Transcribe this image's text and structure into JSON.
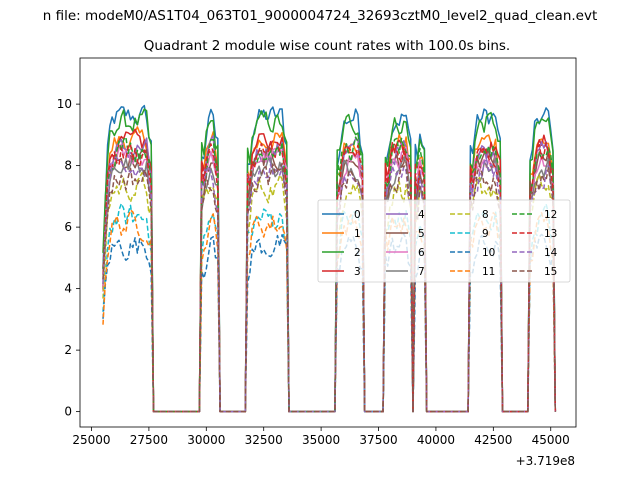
{
  "figure": {
    "suptitle": "n file: modeM0/AS1T04_063T01_9000004724_32693cztM0_level2_quad_clean.evt",
    "title": "Quadrant 2 module wise count rates with 100.0s bins."
  },
  "chart_data": {
    "type": "line",
    "title": "Quadrant 2 module wise count rates with 100.0s bins.",
    "xlabel": "",
    "ylabel": "",
    "x_offset_label": "+3.719e8",
    "xlim": [
      24500,
      46100
    ],
    "ylim": [
      -0.5,
      11.5
    ],
    "xticks": [
      25000,
      27500,
      30000,
      32500,
      35000,
      37500,
      40000,
      42500,
      45000
    ],
    "xtick_labels": [
      "25000",
      "27500",
      "30000",
      "32500",
      "35000",
      "37500",
      "40000",
      "42500",
      "45000"
    ],
    "yticks": [
      0,
      2,
      4,
      6,
      8,
      10
    ],
    "ytick_labels": [
      "0",
      "2",
      "4",
      "6",
      "8",
      "10"
    ],
    "grid": false,
    "legend_position": "center-right",
    "legend_columns": 4,
    "segments": [
      {
        "start": 25500,
        "end": 27600
      },
      {
        "start": 29800,
        "end": 30500
      },
      {
        "start": 31800,
        "end": 33500
      },
      {
        "start": 35700,
        "end": 36800
      },
      {
        "start": 37800,
        "end": 38900
      },
      {
        "start": 39100,
        "end": 39500
      },
      {
        "start": 41500,
        "end": 42800
      },
      {
        "start": 44100,
        "end": 45100
      }
    ],
    "zero_level": 0,
    "series": [
      {
        "name": "0",
        "color": "#1f77b4",
        "style": "solid",
        "level": 9.6
      },
      {
        "name": "1",
        "color": "#ff7f0e",
        "style": "solid",
        "level": 8.8
      },
      {
        "name": "2",
        "color": "#2ca02c",
        "style": "solid",
        "level": 9.4
      },
      {
        "name": "3",
        "color": "#d62728",
        "style": "solid",
        "level": 8.7
      },
      {
        "name": "4",
        "color": "#9467bd",
        "style": "solid",
        "level": 8.5
      },
      {
        "name": "5",
        "color": "#8c564b",
        "style": "solid",
        "level": 8.2
      },
      {
        "name": "6",
        "color": "#e377c2",
        "style": "solid",
        "level": 8.3
      },
      {
        "name": "7",
        "color": "#7f7f7f",
        "style": "solid",
        "level": 8.0
      },
      {
        "name": "8",
        "color": "#bcbd22",
        "style": "dashed",
        "level": 7.3
      },
      {
        "name": "9",
        "color": "#17becf",
        "style": "dashed",
        "level": 6.3
      },
      {
        "name": "10",
        "color": "#1f77b4",
        "style": "dashed",
        "level": 5.4
      },
      {
        "name": "11",
        "color": "#ff7f0e",
        "style": "dashed",
        "level": 6.1
      },
      {
        "name": "12",
        "color": "#2ca02c",
        "style": "dashed",
        "level": 8.6
      },
      {
        "name": "13",
        "color": "#d62728",
        "style": "dashed",
        "level": 8.4
      },
      {
        "name": "14",
        "color": "#9467bd",
        "style": "dashed",
        "level": 7.8
      },
      {
        "name": "15",
        "color": "#8c564b",
        "style": "dashed",
        "level": 7.6
      }
    ]
  }
}
